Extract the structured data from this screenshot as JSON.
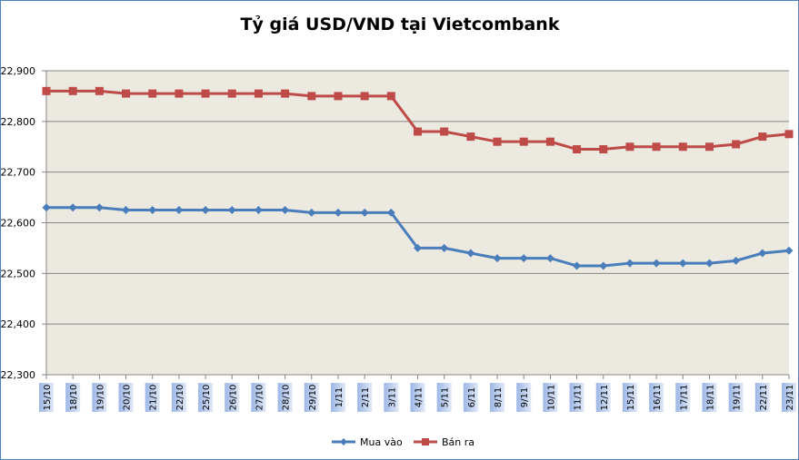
{
  "chart_data": {
    "type": "line",
    "title": "Tỷ giá USD/VND tại Vietcombank",
    "xlabel": "",
    "ylabel": "",
    "ylim": [
      22300,
      22900
    ],
    "yticks": [
      22300,
      22400,
      22500,
      22600,
      22700,
      22800,
      22900
    ],
    "ytick_labels": [
      "22,300",
      "22,400",
      "22,500",
      "22,600",
      "22,700",
      "22,800",
      "22,900"
    ],
    "grid": true,
    "legend_position": "bottom",
    "categories": [
      "15/10",
      "18/10",
      "19/10",
      "20/10",
      "21/10",
      "22/10",
      "25/10",
      "26/10",
      "27/10",
      "28/10",
      "29/10",
      "1/11",
      "2/11",
      "3/11",
      "4/11",
      "5/11",
      "6/11",
      "8/11",
      "9/11",
      "10/11",
      "11/11",
      "12/11",
      "15/11",
      "16/11",
      "17/11",
      "18/11",
      "19/11",
      "22/11",
      "23/11"
    ],
    "series": [
      {
        "name": "Mua vào",
        "color": "#4a7ebb",
        "marker": "diamond",
        "values": [
          22630,
          22630,
          22630,
          22625,
          22625,
          22625,
          22625,
          22625,
          22625,
          22625,
          22620,
          22620,
          22620,
          22620,
          22550,
          22550,
          22540,
          22530,
          22530,
          22530,
          22515,
          22515,
          22520,
          22520,
          22520,
          22520,
          22525,
          22540,
          22545
        ]
      },
      {
        "name": "Bán ra",
        "color": "#be4b48",
        "marker": "square",
        "values": [
          22860,
          22860,
          22860,
          22855,
          22855,
          22855,
          22855,
          22855,
          22855,
          22855,
          22850,
          22850,
          22850,
          22850,
          22780,
          22780,
          22770,
          22760,
          22760,
          22760,
          22745,
          22745,
          22750,
          22750,
          22750,
          22750,
          22755,
          22770,
          22775
        ]
      }
    ]
  },
  "colors": {
    "plot_bg": "#ece9e0",
    "grid": "#868686",
    "border": "#4f81bd"
  }
}
